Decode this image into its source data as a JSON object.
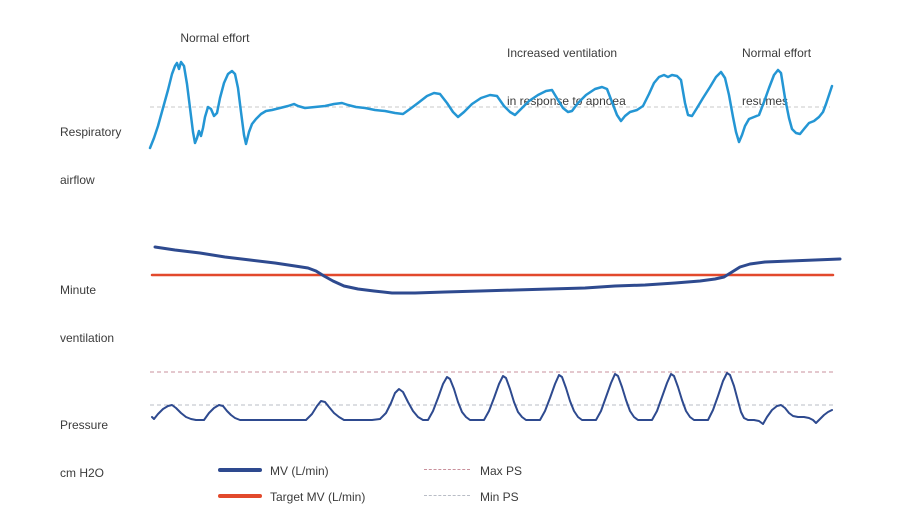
{
  "colors": {
    "airflow": "#2496d4",
    "mv": "#2e4a8f",
    "target_mv": "#e2492c",
    "max_ps": "#c9909c",
    "min_ps": "#b9bdc6",
    "baseline": "#c9c9c9",
    "text": "#3b3b3b"
  },
  "annotations": {
    "normal_effort": "Normal effort",
    "increased_ventilation_line1": "Increased ventilation",
    "increased_ventilation_line2": "in response to apnoea",
    "resumes_line1": "Normal effort",
    "resumes_line2": "resumes"
  },
  "rows": {
    "airflow_line1": "Respiratory",
    "airflow_line2": "airflow",
    "mv_line1": "Minute",
    "mv_line2": "ventilation",
    "pressure_line1": "Pressure",
    "pressure_line2": "cm H2O"
  },
  "legend": {
    "mv": "MV (L/min)",
    "target_mv": "Target MV (L/min)",
    "max_ps": "Max PS",
    "min_ps": "Min PS"
  },
  "waveforms": {
    "airflow_baseline": {
      "points": [
        [
          150,
          107
        ],
        [
          830,
          107
        ]
      ]
    },
    "airflow": {
      "points": [
        [
          150,
          148
        ],
        [
          154,
          138
        ],
        [
          158,
          126
        ],
        [
          163,
          108
        ],
        [
          168,
          90
        ],
        [
          172,
          74
        ],
        [
          175,
          66
        ],
        [
          177,
          63
        ],
        [
          179,
          69
        ],
        [
          181,
          62
        ],
        [
          184,
          66
        ],
        [
          187,
          84
        ],
        [
          190,
          108
        ],
        [
          193,
          132
        ],
        [
          195,
          143
        ],
        [
          197,
          138
        ],
        [
          199,
          131
        ],
        [
          201,
          136
        ],
        [
          203,
          128
        ],
        [
          205,
          117
        ],
        [
          208,
          107
        ],
        [
          211,
          109
        ],
        [
          214,
          116
        ],
        [
          217,
          113
        ],
        [
          220,
          98
        ],
        [
          224,
          83
        ],
        [
          228,
          74
        ],
        [
          232,
          71
        ],
        [
          235,
          74
        ],
        [
          238,
          88
        ],
        [
          241,
          112
        ],
        [
          244,
          135
        ],
        [
          246,
          144
        ],
        [
          249,
          132
        ],
        [
          252,
          124
        ],
        [
          256,
          119
        ],
        [
          261,
          114
        ],
        [
          266,
          111
        ],
        [
          272,
          110
        ],
        [
          280,
          108
        ],
        [
          288,
          106
        ],
        [
          294,
          104
        ],
        [
          298,
          106
        ],
        [
          305,
          108
        ],
        [
          315,
          107
        ],
        [
          325,
          106
        ],
        [
          334,
          104
        ],
        [
          342,
          103
        ],
        [
          348,
          105
        ],
        [
          356,
          107
        ],
        [
          365,
          108
        ],
        [
          375,
          110
        ],
        [
          385,
          111
        ],
        [
          395,
          113
        ],
        [
          403,
          114
        ],
        [
          410,
          109
        ],
        [
          418,
          103
        ],
        [
          427,
          96
        ],
        [
          434,
          93
        ],
        [
          440,
          94
        ],
        [
          447,
          103
        ],
        [
          453,
          112
        ],
        [
          458,
          117
        ],
        [
          464,
          112
        ],
        [
          472,
          104
        ],
        [
          481,
          98
        ],
        [
          490,
          95
        ],
        [
          497,
          96
        ],
        [
          504,
          106
        ],
        [
          510,
          112
        ],
        [
          515,
          115
        ],
        [
          521,
          109
        ],
        [
          529,
          101
        ],
        [
          538,
          95
        ],
        [
          546,
          91
        ],
        [
          552,
          90
        ],
        [
          558,
          100
        ],
        [
          563,
          108
        ],
        [
          568,
          112
        ],
        [
          572,
          111
        ],
        [
          578,
          103
        ],
        [
          586,
          95
        ],
        [
          595,
          89
        ],
        [
          602,
          87
        ],
        [
          607,
          89
        ],
        [
          612,
          102
        ],
        [
          617,
          115
        ],
        [
          621,
          121
        ],
        [
          625,
          116
        ],
        [
          630,
          112
        ],
        [
          637,
          110
        ],
        [
          643,
          106
        ],
        [
          649,
          94
        ],
        [
          654,
          83
        ],
        [
          659,
          77
        ],
        [
          664,
          75
        ],
        [
          668,
          77
        ],
        [
          672,
          75
        ],
        [
          677,
          76
        ],
        [
          681,
          80
        ],
        [
          685,
          103
        ],
        [
          688,
          115
        ],
        [
          692,
          116
        ],
        [
          697,
          108
        ],
        [
          703,
          98
        ],
        [
          710,
          87
        ],
        [
          716,
          77
        ],
        [
          721,
          72
        ],
        [
          725,
          78
        ],
        [
          729,
          95
        ],
        [
          733,
          117
        ],
        [
          736,
          132
        ],
        [
          739,
          142
        ],
        [
          742,
          135
        ],
        [
          745,
          126
        ],
        [
          749,
          119
        ],
        [
          754,
          117
        ],
        [
          759,
          115
        ],
        [
          764,
          102
        ],
        [
          769,
          88
        ],
        [
          774,
          75
        ],
        [
          778,
          70
        ],
        [
          781,
          73
        ],
        [
          785,
          98
        ],
        [
          789,
          118
        ],
        [
          792,
          129
        ],
        [
          796,
          133
        ],
        [
          800,
          134
        ],
        [
          804,
          129
        ],
        [
          809,
          123
        ],
        [
          814,
          121
        ],
        [
          819,
          117
        ],
        [
          823,
          112
        ],
        [
          826,
          104
        ],
        [
          829,
          95
        ],
        [
          832,
          86
        ]
      ]
    },
    "mv": {
      "points": [
        [
          155,
          247
        ],
        [
          175,
          250
        ],
        [
          200,
          253
        ],
        [
          225,
          257
        ],
        [
          250,
          260
        ],
        [
          275,
          263
        ],
        [
          295,
          266
        ],
        [
          308,
          268
        ],
        [
          316,
          271
        ],
        [
          324,
          276
        ],
        [
          333,
          281
        ],
        [
          344,
          286
        ],
        [
          358,
          289
        ],
        [
          374,
          291
        ],
        [
          392,
          293
        ],
        [
          415,
          293
        ],
        [
          445,
          292
        ],
        [
          480,
          291
        ],
        [
          515,
          290
        ],
        [
          550,
          289
        ],
        [
          585,
          288
        ],
        [
          615,
          286
        ],
        [
          645,
          285
        ],
        [
          675,
          283
        ],
        [
          700,
          281
        ],
        [
          715,
          279
        ],
        [
          724,
          277
        ],
        [
          732,
          272
        ],
        [
          740,
          267
        ],
        [
          750,
          264
        ],
        [
          765,
          262
        ],
        [
          790,
          261
        ],
        [
          815,
          260
        ],
        [
          840,
          259
        ]
      ]
    },
    "target_mv": {
      "points": [
        [
          152,
          275
        ],
        [
          833,
          275
        ]
      ]
    },
    "max_ps_line": {
      "points": [
        [
          150,
          372
        ],
        [
          833,
          372
        ]
      ]
    },
    "min_ps_line": {
      "points": [
        [
          150,
          405
        ],
        [
          833,
          405
        ]
      ]
    },
    "pressure": {
      "points": [
        [
          152,
          417
        ],
        [
          154,
          419
        ],
        [
          158,
          414
        ],
        [
          163,
          409
        ],
        [
          168,
          406
        ],
        [
          172,
          405
        ],
        [
          176,
          408
        ],
        [
          181,
          413
        ],
        [
          186,
          417
        ],
        [
          191,
          419
        ],
        [
          196,
          420
        ],
        [
          204,
          420
        ],
        [
          209,
          413
        ],
        [
          214,
          408
        ],
        [
          219,
          405
        ],
        [
          223,
          406
        ],
        [
          227,
          411
        ],
        [
          231,
          415
        ],
        [
          235,
          418
        ],
        [
          240,
          420
        ],
        [
          250,
          420
        ],
        [
          262,
          420
        ],
        [
          274,
          420
        ],
        [
          286,
          420
        ],
        [
          298,
          420
        ],
        [
          306,
          420
        ],
        [
          312,
          414
        ],
        [
          317,
          406
        ],
        [
          321,
          401
        ],
        [
          325,
          402
        ],
        [
          329,
          407
        ],
        [
          334,
          413
        ],
        [
          339,
          417
        ],
        [
          344,
          420
        ],
        [
          352,
          420
        ],
        [
          360,
          420
        ],
        [
          372,
          420
        ],
        [
          380,
          419
        ],
        [
          386,
          413
        ],
        [
          391,
          403
        ],
        [
          395,
          393
        ],
        [
          399,
          389
        ],
        [
          403,
          392
        ],
        [
          408,
          402
        ],
        [
          413,
          411
        ],
        [
          418,
          417
        ],
        [
          423,
          420
        ],
        [
          428,
          420
        ],
        [
          433,
          411
        ],
        [
          438,
          398
        ],
        [
          443,
          384
        ],
        [
          447,
          377
        ],
        [
          450,
          379
        ],
        [
          454,
          389
        ],
        [
          458,
          402
        ],
        [
          462,
          412
        ],
        [
          466,
          417
        ],
        [
          470,
          420
        ],
        [
          484,
          420
        ],
        [
          489,
          411
        ],
        [
          494,
          398
        ],
        [
          499,
          384
        ],
        [
          503,
          376
        ],
        [
          506,
          378
        ],
        [
          510,
          389
        ],
        [
          514,
          402
        ],
        [
          518,
          412
        ],
        [
          522,
          417
        ],
        [
          526,
          420
        ],
        [
          540,
          420
        ],
        [
          545,
          411
        ],
        [
          550,
          398
        ],
        [
          555,
          384
        ],
        [
          559,
          375
        ],
        [
          562,
          377
        ],
        [
          566,
          388
        ],
        [
          570,
          401
        ],
        [
          574,
          411
        ],
        [
          578,
          417
        ],
        [
          582,
          420
        ],
        [
          596,
          420
        ],
        [
          601,
          411
        ],
        [
          606,
          397
        ],
        [
          611,
          383
        ],
        [
          615,
          374
        ],
        [
          618,
          376
        ],
        [
          622,
          387
        ],
        [
          626,
          400
        ],
        [
          630,
          411
        ],
        [
          634,
          417
        ],
        [
          638,
          420
        ],
        [
          652,
          420
        ],
        [
          657,
          411
        ],
        [
          662,
          397
        ],
        [
          667,
          383
        ],
        [
          671,
          374
        ],
        [
          674,
          376
        ],
        [
          678,
          387
        ],
        [
          682,
          400
        ],
        [
          686,
          411
        ],
        [
          690,
          417
        ],
        [
          694,
          420
        ],
        [
          708,
          420
        ],
        [
          713,
          410
        ],
        [
          718,
          396
        ],
        [
          723,
          381
        ],
        [
          727,
          373
        ],
        [
          730,
          375
        ],
        [
          734,
          386
        ],
        [
          738,
          401
        ],
        [
          741,
          412
        ],
        [
          744,
          418
        ],
        [
          748,
          420
        ],
        [
          754,
          420
        ],
        [
          759,
          421
        ],
        [
          763,
          424
        ],
        [
          767,
          417
        ],
        [
          772,
          410
        ],
        [
          777,
          406
        ],
        [
          781,
          405
        ],
        [
          785,
          408
        ],
        [
          789,
          413
        ],
        [
          793,
          416
        ],
        [
          798,
          417
        ],
        [
          804,
          417
        ],
        [
          809,
          418
        ],
        [
          813,
          420
        ],
        [
          816,
          423
        ],
        [
          820,
          419
        ],
        [
          824,
          415
        ],
        [
          828,
          412
        ],
        [
          832,
          410
        ]
      ]
    }
  }
}
